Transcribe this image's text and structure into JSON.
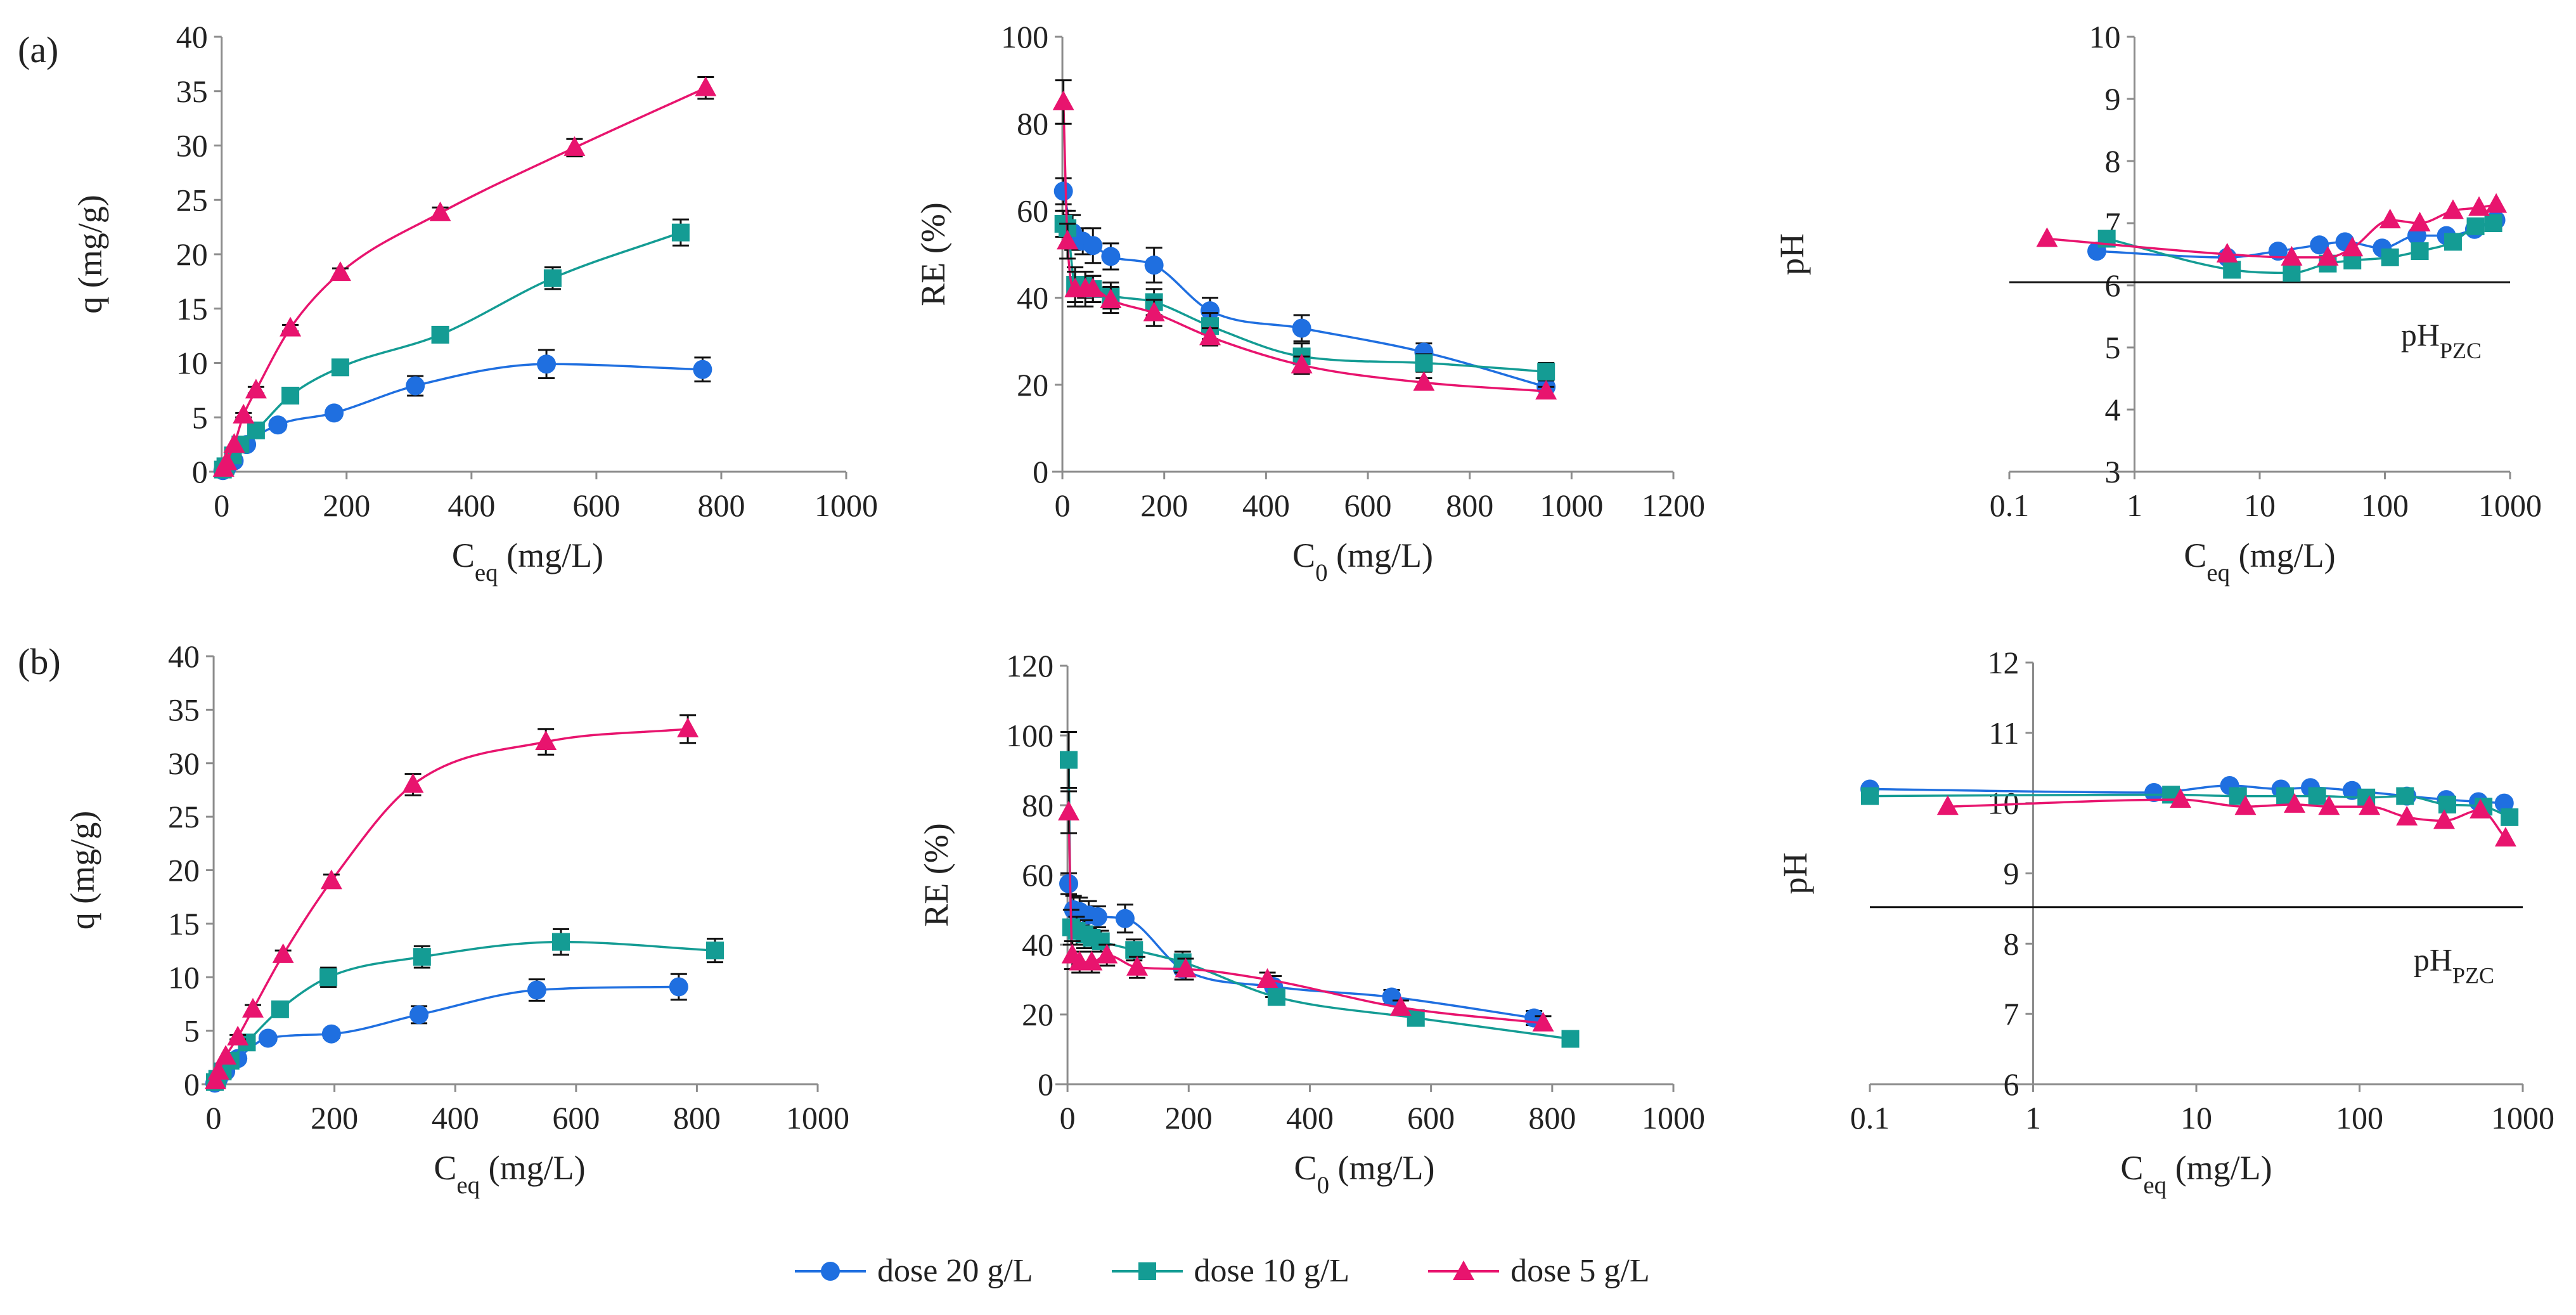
{
  "colors": {
    "dose20": "#1F6FE0",
    "dose10": "#149C94",
    "dose5": "#E8146E",
    "axis": "#8c8c8c",
    "text": "#222222"
  },
  "panels": {
    "a": "(a)",
    "b": "(b)"
  },
  "legend": {
    "dose20": "dose 20 g/L",
    "dose10": "dose 10 g/L",
    "dose5": "dose 5 g/L"
  },
  "chart_data": [
    {
      "id": "a_q",
      "type": "scatter",
      "scale": "linear",
      "xlabel": "Ceq (mg/L)",
      "ylabel": "q (mg/g)",
      "xlim": [
        -20,
        1000
      ],
      "ylim": [
        0,
        40
      ],
      "xticks": [
        0,
        200,
        400,
        600,
        800,
        1000
      ],
      "yticks": [
        0,
        5,
        10,
        15,
        20,
        25,
        30,
        35,
        40
      ],
      "series": [
        {
          "name": "dose 20 g/L",
          "marker": "circle",
          "x": [
            2,
            8,
            20,
            40,
            90,
            180,
            310,
            520,
            770
          ],
          "y": [
            0.1,
            0.3,
            1.0,
            2.5,
            4.3,
            5.4,
            7.9,
            9.9,
            9.4
          ],
          "err": [
            0,
            0,
            0,
            0.3,
            0.4,
            0.4,
            0.9,
            1.3,
            1.1
          ]
        },
        {
          "name": "dose 10 g/L",
          "marker": "square",
          "x": [
            2,
            6,
            18,
            30,
            55,
            110,
            190,
            350,
            530,
            735
          ],
          "y": [
            0.2,
            0.5,
            1.5,
            2.5,
            3.8,
            7.0,
            9.6,
            12.6,
            17.8,
            22.0
          ],
          "err": [
            0,
            0,
            0,
            0.2,
            0.3,
            0.4,
            0.4,
            0.5,
            1.0,
            1.2
          ]
        },
        {
          "name": "dose 5 g/L",
          "marker": "triangle",
          "x": [
            3,
            8,
            20,
            35,
            55,
            110,
            190,
            350,
            565,
            775
          ],
          "y": [
            0.3,
            0.9,
            2.5,
            5.2,
            7.5,
            13.2,
            18.3,
            23.8,
            29.8,
            35.3
          ],
          "err": [
            0,
            0,
            0,
            0.2,
            0.3,
            0.3,
            0.4,
            0.5,
            0.8,
            1.0
          ]
        }
      ]
    },
    {
      "id": "a_re",
      "type": "scatter",
      "scale": "linear",
      "xlabel": "C0 (mg/L)",
      "ylabel": "RE (%)",
      "xlim": [
        -20,
        1200
      ],
      "ylim": [
        0,
        100
      ],
      "xticks": [
        0,
        200,
        400,
        600,
        800,
        1000,
        1200
      ],
      "yticks": [
        0,
        20,
        40,
        60,
        80,
        100
      ],
      "series": [
        {
          "name": "dose 20 g/L",
          "marker": "circle",
          "x": [
            2,
            20,
            40,
            60,
            95,
            180,
            290,
            470,
            710,
            950
          ],
          "y": [
            64.5,
            55,
            53,
            52,
            49.5,
            47.5,
            37,
            33,
            27.5,
            19.5
          ],
          "err": [
            3,
            4,
            3,
            4,
            3,
            4,
            3,
            3,
            2,
            2
          ]
        },
        {
          "name": "dose 10 g/L",
          "marker": "square",
          "x": [
            2,
            10,
            25,
            45,
            60,
            95,
            180,
            290,
            470,
            710,
            950
          ],
          "y": [
            57,
            56,
            43,
            43,
            42,
            40.5,
            39,
            33.5,
            26.5,
            25,
            23
          ],
          "err": [
            3,
            4,
            4,
            3,
            3,
            3,
            3,
            3,
            3,
            2,
            2
          ]
        },
        {
          "name": "dose 5 g/L",
          "marker": "triangle",
          "x": [
            2,
            10,
            25,
            45,
            60,
            95,
            180,
            290,
            470,
            710,
            950
          ],
          "y": [
            85,
            53,
            42,
            42,
            42,
            39.5,
            36.5,
            31,
            24.5,
            20.5,
            18.5
          ],
          "err": [
            5,
            4,
            4,
            4,
            3,
            3,
            3,
            2,
            2,
            1,
            1
          ]
        }
      ]
    },
    {
      "id": "a_ph",
      "type": "scatter",
      "scale": "log",
      "xlabel": "Ceq (mg/L)",
      "ylabel": "pH",
      "xlim": [
        0.1,
        1000
      ],
      "ylim": [
        3,
        10
      ],
      "xticks": [
        0.1,
        1,
        10,
        100,
        1000
      ],
      "xticklabels": [
        "0.1",
        "1",
        "10",
        "100",
        "1000"
      ],
      "yticks": [
        3,
        4,
        5,
        6,
        7,
        8,
        9,
        10
      ],
      "reference_line": {
        "y": 6.05,
        "label": "pH",
        "subscript": "PZC"
      },
      "series": [
        {
          "name": "dose 20 g/L",
          "marker": "circle",
          "x": [
            0.5,
            5.5,
            14,
            30,
            48,
            95,
            180,
            310,
            520,
            770
          ],
          "y": [
            6.55,
            6.45,
            6.55,
            6.65,
            6.7,
            6.6,
            6.8,
            6.8,
            6.9,
            7.05
          ]
        },
        {
          "name": "dose 10 g/L",
          "marker": "square",
          "x": [
            0.6,
            6,
            18,
            35,
            55,
            110,
            190,
            350,
            530,
            735
          ],
          "y": [
            6.75,
            6.25,
            6.2,
            6.35,
            6.4,
            6.45,
            6.55,
            6.7,
            6.95,
            7.0
          ]
        },
        {
          "name": "dose 5 g/L",
          "marker": "triangle",
          "x": [
            0.2,
            5.5,
            18,
            35,
            55,
            110,
            190,
            350,
            565,
            775
          ],
          "y": [
            6.75,
            6.5,
            6.45,
            6.45,
            6.6,
            7.05,
            7.0,
            7.2,
            7.25,
            7.3
          ]
        }
      ]
    },
    {
      "id": "b_q",
      "type": "scatter",
      "scale": "linear",
      "xlabel": "Ceq (mg/L)",
      "ylabel": "q (mg/g)",
      "xlim": [
        -20,
        1000
      ],
      "ylim": [
        0,
        40
      ],
      "xticks": [
        0,
        200,
        400,
        600,
        800,
        1000
      ],
      "yticks": [
        0,
        5,
        10,
        15,
        20,
        25,
        30,
        35,
        40
      ],
      "series": [
        {
          "name": "dose 20 g/L",
          "marker": "circle",
          "x": [
            2,
            8,
            20,
            40,
            90,
            195,
            340,
            535,
            770
          ],
          "y": [
            0.1,
            0.5,
            1.2,
            2.4,
            4.3,
            4.7,
            6.5,
            8.8,
            9.1
          ],
          "err": [
            0,
            0,
            0,
            0.2,
            0.3,
            0.4,
            0.8,
            1.0,
            1.2
          ]
        },
        {
          "name": "dose 10 g/L",
          "marker": "square",
          "x": [
            2,
            6,
            15,
            28,
            55,
            110,
            190,
            345,
            575,
            830
          ],
          "y": [
            0.2,
            0.5,
            1.2,
            2.2,
            3.9,
            7.0,
            10.0,
            11.9,
            13.3,
            12.5
          ],
          "err": [
            0,
            0,
            0,
            0.2,
            0.4,
            0.5,
            0.9,
            1.0,
            1.2,
            1.1
          ]
        },
        {
          "name": "dose 5 g/L",
          "marker": "triangle",
          "x": [
            3,
            8,
            20,
            40,
            65,
            115,
            195,
            330,
            550,
            785
          ],
          "y": [
            0.3,
            1.2,
            2.6,
            4.4,
            7.0,
            12.1,
            19.0,
            28.0,
            32.0,
            33.2
          ],
          "err": [
            0,
            0,
            0,
            0.2,
            0.4,
            0.4,
            0.6,
            1.0,
            1.2,
            1.3
          ]
        }
      ]
    },
    {
      "id": "b_re",
      "type": "scatter",
      "scale": "linear",
      "xlabel": "C0 (mg/L)",
      "ylabel": "RE (%)",
      "xlim": [
        -20,
        1000
      ],
      "ylim": [
        0,
        120
      ],
      "xticks": [
        0,
        200,
        400,
        600,
        800,
        1000
      ],
      "yticks": [
        0,
        20,
        40,
        60,
        80,
        100,
        120
      ],
      "series": [
        {
          "name": "dose 20 g/L",
          "marker": "circle",
          "x": [
            2,
            10,
            20,
            35,
            50,
            95,
            190,
            340,
            535,
            770
          ],
          "y": [
            57.5,
            50,
            49.5,
            48.5,
            48,
            47.5,
            33,
            28,
            25,
            19
          ],
          "err": [
            3,
            4,
            4,
            4,
            3,
            4,
            3,
            3,
            2,
            2
          ]
        },
        {
          "name": "dose 10 g/L",
          "marker": "square",
          "x": [
            2,
            6,
            15,
            28,
            40,
            55,
            110,
            190,
            345,
            575,
            830
          ],
          "y": [
            93,
            45,
            44,
            43,
            42,
            41,
            38.5,
            35,
            25,
            19,
            13
          ],
          "err": [
            8,
            5,
            4,
            4,
            3,
            3,
            3,
            3,
            2,
            2,
            1
          ]
        },
        {
          "name": "dose 5 g/L",
          "marker": "triangle",
          "x": [
            2,
            8,
            20,
            40,
            65,
            115,
            195,
            330,
            550,
            785
          ],
          "y": [
            78,
            37,
            35,
            35,
            37,
            33.5,
            33,
            30,
            22,
            17.5
          ],
          "err": [
            6,
            4,
            3,
            3,
            3,
            3,
            3,
            2,
            2,
            2
          ]
        }
      ]
    },
    {
      "id": "b_ph",
      "type": "scatter",
      "scale": "log",
      "xlabel": "Ceq (mg/L)",
      "ylabel": "pH",
      "xlim": [
        0.1,
        1000
      ],
      "ylim": [
        6,
        12
      ],
      "xticks": [
        0.1,
        1,
        10,
        100,
        1000
      ],
      "xticklabels": [
        "0.1",
        "1",
        "10",
        "100",
        "1000"
      ],
      "yticks": [
        6,
        7,
        8,
        9,
        10,
        11,
        12
      ],
      "reference_line": {
        "y": 8.52,
        "label": "pH",
        "subscript": "PZC"
      },
      "series": [
        {
          "name": "dose 20 g/L",
          "marker": "circle",
          "x": [
            0.1,
            5.5,
            16,
            33,
            50,
            90,
            195,
            340,
            535,
            770
          ],
          "y": [
            10.2,
            10.15,
            10.25,
            10.2,
            10.22,
            10.18,
            10.1,
            10.05,
            10.02,
            10.0
          ]
        },
        {
          "name": "dose 10 g/L",
          "marker": "square",
          "x": [
            0.1,
            7,
            18,
            35,
            55,
            110,
            190,
            345,
            575,
            830
          ],
          "y": [
            10.1,
            10.12,
            10.1,
            10.1,
            10.1,
            10.08,
            10.1,
            9.98,
            9.95,
            9.8
          ]
        },
        {
          "name": "dose 5 g/L",
          "marker": "triangle",
          "x": [
            0.3,
            8,
            20,
            40,
            65,
            115,
            195,
            330,
            550,
            785
          ],
          "y": [
            9.95,
            10.05,
            9.95,
            9.98,
            9.95,
            9.95,
            9.8,
            9.75,
            9.9,
            9.5
          ]
        }
      ]
    }
  ]
}
